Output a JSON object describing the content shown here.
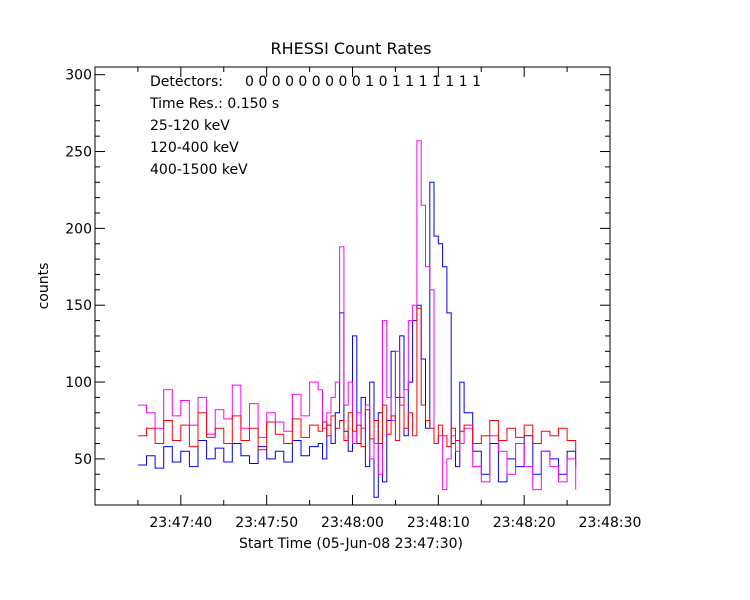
{
  "chart_data": {
    "type": "line",
    "title": "RHESSI Count Rates",
    "ylabel": "counts",
    "xlabel": "Start Time (05-Jun-08 23:47:30)",
    "x_unit": "seconds after 23:47:30",
    "xlim": [
      -5,
      55
    ],
    "ylim": [
      20,
      305
    ],
    "grid": false,
    "x_ticks": [
      {
        "value": 5,
        "label": "23:47:40"
      },
      {
        "value": 15,
        "label": "23:47:50"
      },
      {
        "value": 25,
        "label": "23:48:00"
      },
      {
        "value": 35,
        "label": "23:48:10"
      },
      {
        "value": 45,
        "label": "23:48:20"
      },
      {
        "value": 55,
        "label": "23:48:30"
      }
    ],
    "y_ticks": [
      {
        "value": 50,
        "label": "50"
      },
      {
        "value": 100,
        "label": "100"
      },
      {
        "value": 150,
        "label": "150"
      },
      {
        "value": 200,
        "label": "200"
      },
      {
        "value": 250,
        "label": "250"
      },
      {
        "value": 300,
        "label": "300"
      }
    ],
    "annotations": {
      "detectors_label": "Detectors:",
      "detectors_values": "0 0 0 0 0 0 0 0 0 1 0 1 1 1 1 1 1 1",
      "time_res": "Time Res.: 0.150 s"
    },
    "series": [
      {
        "name": "25-120 keV",
        "color": "#0000ff",
        "x": [
          0,
          1,
          2,
          3,
          4,
          5,
          6,
          7,
          8,
          9,
          10,
          11,
          12,
          13,
          14,
          15,
          16,
          17,
          18,
          19,
          20,
          21,
          21.5,
          22,
          22.5,
          23,
          23.5,
          24,
          24.5,
          25,
          25.5,
          26,
          26.5,
          27,
          27.5,
          28,
          28.5,
          29,
          29.5,
          30,
          30.5,
          31,
          31.5,
          32,
          32.5,
          33,
          33.5,
          34,
          34.5,
          35,
          35.5,
          36,
          36.5,
          37,
          37.5,
          38,
          39,
          40,
          41,
          42,
          43,
          44,
          45,
          46,
          47,
          48,
          49,
          50,
          51
        ],
        "values": [
          46,
          52,
          44,
          58,
          48,
          55,
          45,
          62,
          50,
          57,
          48,
          60,
          52,
          47,
          58,
          50,
          55,
          48,
          62,
          52,
          58,
          60,
          50,
          72,
          60,
          80,
          145,
          68,
          55,
          130,
          60,
          90,
          45,
          100,
          25,
          80,
          35,
          75,
          120,
          90,
          130,
          65,
          100,
          140,
          150,
          115,
          70,
          230,
          195,
          190,
          175,
          145,
          60,
          45,
          100,
          80,
          55,
          40,
          60,
          35,
          50,
          45,
          65,
          40,
          55,
          50,
          40,
          55,
          45
        ]
      },
      {
        "name": "120-400 keV",
        "color": "#ff00ff",
        "x": [
          0,
          1,
          2,
          3,
          4,
          5,
          6,
          7,
          8,
          9,
          10,
          11,
          12,
          13,
          14,
          15,
          16,
          17,
          18,
          19,
          20,
          21,
          21.5,
          22,
          22.5,
          23,
          23.5,
          24,
          24.5,
          25,
          25.5,
          26,
          26.5,
          27,
          27.5,
          28,
          28.5,
          29,
          29.5,
          30,
          30.5,
          31,
          31.5,
          32,
          32.5,
          33,
          33.5,
          34,
          34.5,
          35,
          35.5,
          36,
          36.5,
          37,
          37.5,
          38,
          39,
          40,
          41,
          42,
          43,
          44,
          45,
          46,
          47,
          48,
          49,
          50,
          51
        ],
        "values": [
          85,
          80,
          70,
          95,
          78,
          88,
          72,
          90,
          66,
          82,
          76,
          98,
          70,
          86,
          64,
          80,
          74,
          68,
          92,
          78,
          100,
          95,
          70,
          80,
          90,
          100,
          188,
          85,
          100,
          60,
          80,
          70,
          85,
          50,
          60,
          40,
          140,
          90,
          75,
          120,
          85,
          95,
          140,
          150,
          257,
          215,
          175,
          160,
          60,
          65,
          30,
          50,
          65,
          55,
          60,
          70,
          45,
          35,
          65,
          55,
          40,
          60,
          45,
          30,
          55,
          45,
          35,
          50,
          30
        ]
      },
      {
        "name": "400-1500 keV",
        "color": "#ff0000",
        "x": [
          0,
          1,
          2,
          3,
          4,
          5,
          6,
          7,
          8,
          9,
          10,
          11,
          12,
          13,
          14,
          15,
          16,
          17,
          18,
          19,
          20,
          21,
          21.5,
          22,
          22.5,
          23,
          23.5,
          24,
          24.5,
          25,
          25.5,
          26,
          26.5,
          27,
          27.5,
          28,
          28.5,
          29,
          29.5,
          30,
          30.5,
          31,
          31.5,
          32,
          32.5,
          33,
          33.5,
          34,
          34.5,
          35,
          35.5,
          36,
          36.5,
          37,
          37.5,
          38,
          39,
          40,
          41,
          42,
          43,
          44,
          45,
          46,
          47,
          48,
          49,
          50,
          51
        ],
        "values": [
          65,
          70,
          60,
          75,
          62,
          72,
          58,
          80,
          64,
          70,
          60,
          78,
          62,
          70,
          56,
          74,
          66,
          60,
          76,
          64,
          72,
          68,
          74,
          65,
          78,
          70,
          75,
          62,
          80,
          68,
          72,
          58,
          82,
          63,
          75,
          60,
          85,
          66,
          78,
          62,
          90,
          70,
          80,
          65,
          148,
          85,
          75,
          70,
          60,
          72,
          65,
          58,
          70,
          62,
          68,
          72,
          60,
          65,
          75,
          62,
          70,
          64,
          72,
          60,
          68,
          65,
          70,
          62,
          55
        ]
      }
    ]
  }
}
